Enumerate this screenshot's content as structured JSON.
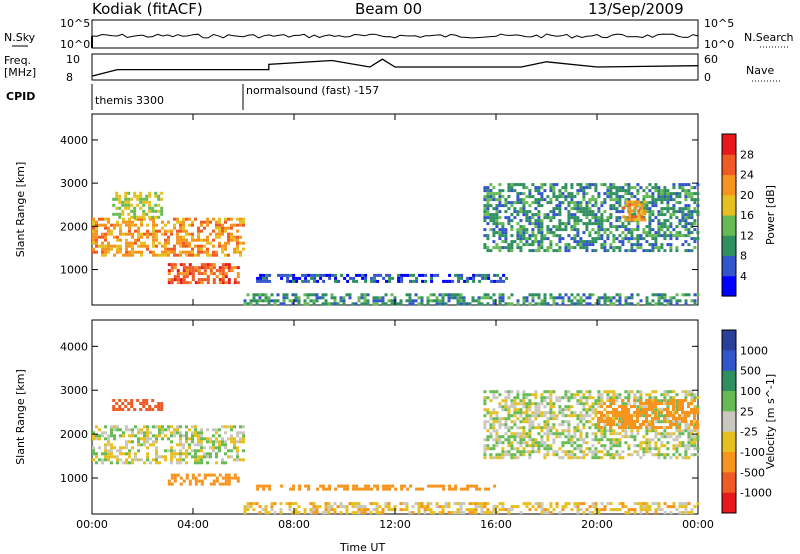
{
  "header": {
    "station": "Kodiak (fitACF)",
    "beam": "Beam 00",
    "date": "13/Sep/2009"
  },
  "strips": {
    "nsky_label": "N.Sky",
    "nsearch_label": "N.Search",
    "freq_label": "Freq.",
    "freq_unit": "[MHz]",
    "nave_label": "Nave",
    "cpid_label": "CPID",
    "nsky_ticks": [
      "10^5",
      "10^0"
    ],
    "nsearch_ticks": [
      "10^5",
      "10^0"
    ],
    "freq_ticks": [
      "10",
      "8"
    ],
    "nave_ticks": [
      "60",
      "0"
    ],
    "cpid_segments": [
      {
        "start": "00:00",
        "label": "themis 3300"
      },
      {
        "start": "06:00",
        "label": "normalsound (fast) -157"
      }
    ],
    "freq_series": [
      {
        "t": 0.0,
        "f": 8.3
      },
      {
        "t": 1.0,
        "f": 8.8
      },
      {
        "t": 7.0,
        "f": 8.8
      },
      {
        "t": 7.0,
        "f": 9.2
      },
      {
        "t": 9.5,
        "f": 9.5
      },
      {
        "t": 11.0,
        "f": 9.0
      },
      {
        "t": 11.5,
        "f": 9.6
      },
      {
        "t": 12.0,
        "f": 9.0
      },
      {
        "t": 17.0,
        "f": 9.0
      },
      {
        "t": 18.0,
        "f": 9.4
      },
      {
        "t": 20.0,
        "f": 9.0
      },
      {
        "t": 24.0,
        "f": 9.1
      }
    ]
  },
  "chart_data": [
    {
      "type": "heatmap",
      "panel": "power",
      "ylabel": "Slant Range [km]",
      "xlabel": "",
      "x_ticks": [
        "00:00",
        "04:00",
        "08:00",
        "12:00",
        "16:00",
        "20:00",
        "00:00"
      ],
      "y_ticks": [
        "1000",
        "2000",
        "3000",
        "4000"
      ],
      "ylim": [
        180,
        4600
      ],
      "xlim_hours": [
        0,
        24
      ],
      "colorbar": {
        "label": "Power [dB]",
        "ticks": [
          "4",
          "8",
          "12",
          "16",
          "20",
          "24",
          "28"
        ],
        "colors": [
          "#0000ff",
          "#3355cc",
          "#2f8f5f",
          "#66bb55",
          "#e6c020",
          "#f7941d",
          "#f05a24",
          "#e8191d"
        ]
      },
      "regions": [
        {
          "t0": 0.0,
          "t1": 6.0,
          "r0": 1300,
          "r1": 2200,
          "level": 22
        },
        {
          "t0": 3.0,
          "t1": 5.8,
          "r0": 650,
          "r1": 1150,
          "level": 26
        },
        {
          "t0": 0.8,
          "t1": 2.8,
          "r0": 2200,
          "r1": 2800,
          "level": 16
        },
        {
          "t0": 6.5,
          "t1": 16.5,
          "r0": 700,
          "r1": 900,
          "level": 6
        },
        {
          "t0": 6.0,
          "t1": 24.0,
          "r0": 180,
          "r1": 450,
          "level": 10
        },
        {
          "t0": 15.5,
          "t1": 24.0,
          "r0": 1400,
          "r1": 3000,
          "level": 10
        },
        {
          "t0": 21.0,
          "t1": 22.0,
          "r0": 2100,
          "r1": 2600,
          "level": 22
        }
      ]
    },
    {
      "type": "heatmap",
      "panel": "velocity",
      "ylabel": "Slant Range [km]",
      "xlabel": "Time UT",
      "x_ticks": [
        "00:00",
        "04:00",
        "08:00",
        "12:00",
        "16:00",
        "20:00",
        "00:00"
      ],
      "y_ticks": [
        "1000",
        "2000",
        "3000",
        "4000"
      ],
      "ylim": [
        180,
        4600
      ],
      "xlim_hours": [
        0,
        24
      ],
      "colorbar": {
        "label": "Velocity [m s^-1]",
        "ticks": [
          "1000",
          "500",
          "100",
          "25",
          "-25",
          "-100",
          "-500",
          "-1000"
        ],
        "colors": [
          "#2a3f9a",
          "#3355cc",
          "#2f8f5f",
          "#66bb55",
          "#c8c8c0",
          "#e6c020",
          "#f7941d",
          "#f05a24",
          "#e8191d"
        ]
      },
      "regions": [
        {
          "t0": 0.0,
          "t1": 6.0,
          "r0": 1300,
          "r1": 2200,
          "level": 0
        },
        {
          "t0": 3.0,
          "t1": 5.8,
          "r0": 800,
          "r1": 1100,
          "level": -300
        },
        {
          "t0": 6.5,
          "t1": 16.0,
          "r0": 700,
          "r1": 850,
          "level": -200
        },
        {
          "t0": 6.0,
          "t1": 24.0,
          "r0": 180,
          "r1": 450,
          "level": -60
        },
        {
          "t0": 0.8,
          "t1": 2.8,
          "r0": 2500,
          "r1": 2800,
          "level": -600
        },
        {
          "t0": 15.5,
          "t1": 24.0,
          "r0": 1400,
          "r1": 3000,
          "level": 10
        },
        {
          "t0": 20.0,
          "t1": 24.0,
          "r0": 2100,
          "r1": 2800,
          "level": -300
        }
      ]
    }
  ]
}
